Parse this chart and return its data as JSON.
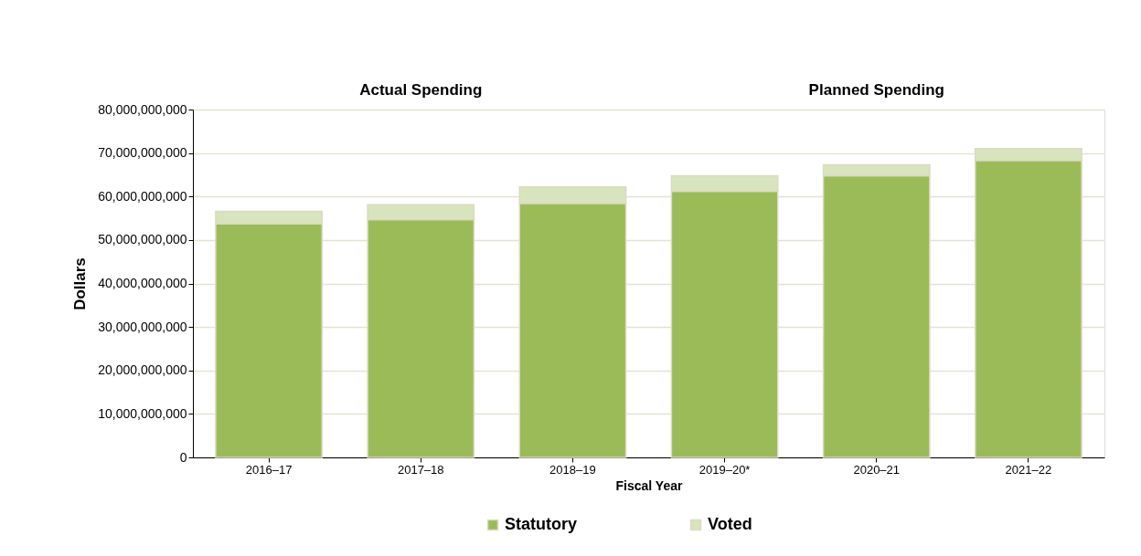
{
  "chart_data": {
    "type": "bar",
    "stacked": true,
    "xlabel": "Fiscal Year",
    "ylabel": "Dollars",
    "categories": [
      "2016–17",
      "2017–18",
      "2018–19",
      "2019–20*",
      "2020–21",
      "2021–22"
    ],
    "series": [
      {
        "name": "Statutory",
        "color": "#9bbb59",
        "values": [
          53700000000,
          54700000000,
          58400000000,
          61200000000,
          64800000000,
          68300000000
        ]
      },
      {
        "name": "Voted",
        "color": "#d7e4bd",
        "values": [
          2900000000,
          3400000000,
          3800000000,
          3600000000,
          2500000000,
          2700000000
        ]
      }
    ],
    "ylim": [
      0,
      80000000000
    ],
    "yticks": [
      0,
      {
        "value": 10000000000,
        "label": "10,000,000,000"
      },
      {
        "value": 20000000000,
        "label": "20,000,000,000"
      },
      {
        "value": 30000000000,
        "label": "30,000,000,000"
      },
      {
        "value": 40000000000,
        "label": "40,000,000,000"
      },
      {
        "value": 50000000000,
        "label": "50,000,000,000"
      },
      {
        "value": 60000000000,
        "label": "60,000,000,000"
      },
      {
        "value": 70000000000,
        "label": "70,000,000,000"
      },
      {
        "value": 80000000000,
        "label": "80,000,000,000"
      }
    ],
    "grid": "y",
    "legend": "bottom",
    "annotations": [
      "Actual Spending",
      "Planned Spending"
    ]
  }
}
